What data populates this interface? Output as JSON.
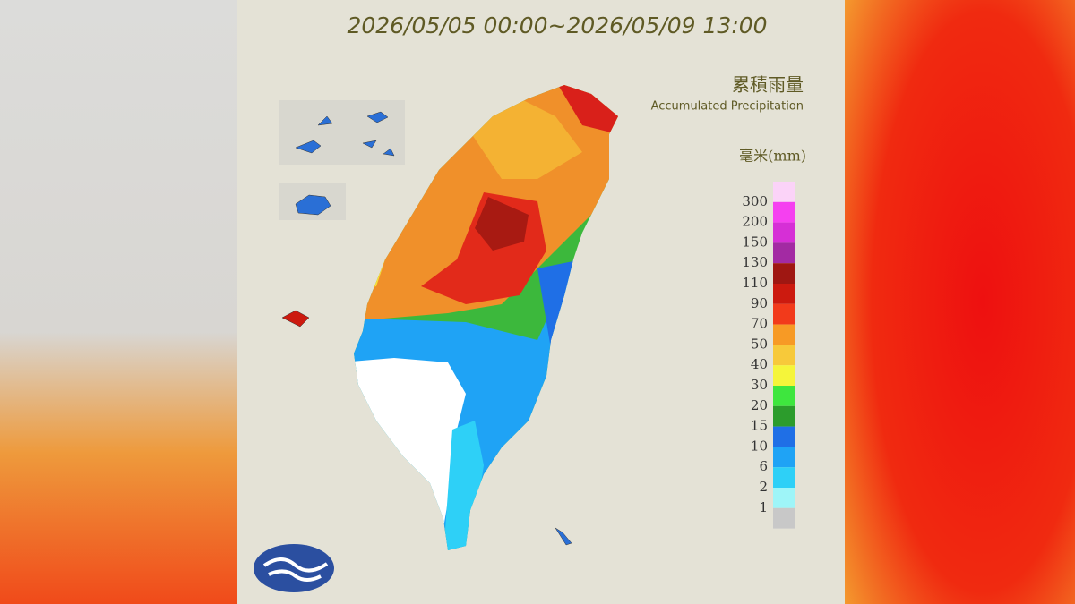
{
  "header": {
    "period": "2026/05/05 00:00~2026/05/09 13:00",
    "title_zh": "累積雨量",
    "title_en": "Accumulated Precipitation",
    "unit": "毫米(mm)"
  },
  "legend": {
    "labels": [
      300,
      200,
      150,
      130,
      110,
      90,
      70,
      50,
      40,
      30,
      20,
      15,
      10,
      6,
      2,
      1
    ],
    "colors": [
      "#fbd3f8",
      "#f540f0",
      "#d62fd6",
      "#a32aa3",
      "#9f1712",
      "#cc1a0f",
      "#f23a1b",
      "#f79a25",
      "#f7c93a",
      "#f5f53a",
      "#3ee63e",
      "#2c9c2c",
      "#1f6fe6",
      "#1fa3f5",
      "#2ed0f7",
      "#9ef5f8",
      "#c8c8c8"
    ]
  }
}
